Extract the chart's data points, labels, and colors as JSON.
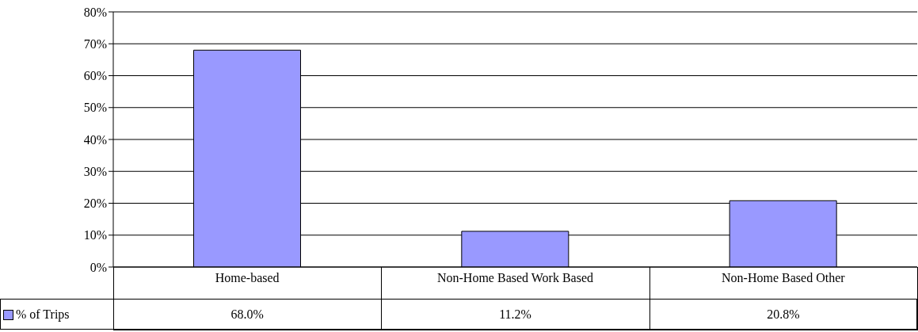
{
  "chart_data": {
    "type": "bar",
    "categories": [
      "Home-based",
      "Non-Home Based Work Based",
      "Non-Home Based Other"
    ],
    "series": [
      {
        "name": "% of Trips",
        "color": "#9999ff",
        "values": [
          68.0,
          11.2,
          20.8
        ],
        "value_labels": [
          "68.0%",
          "11.2%",
          "20.8%"
        ]
      }
    ],
    "ylim": [
      0,
      80
    ],
    "yticks": [
      {
        "value": 0,
        "label": "0%"
      },
      {
        "value": 10,
        "label": "10%"
      },
      {
        "value": 20,
        "label": "20%"
      },
      {
        "value": 30,
        "label": "30%"
      },
      {
        "value": 40,
        "label": "40%"
      },
      {
        "value": 50,
        "label": "50%"
      },
      {
        "value": 60,
        "label": "60%"
      },
      {
        "value": 70,
        "label": "70%"
      },
      {
        "value": 80,
        "label": "80%"
      }
    ],
    "grid": "y",
    "legend": "bottom left"
  }
}
